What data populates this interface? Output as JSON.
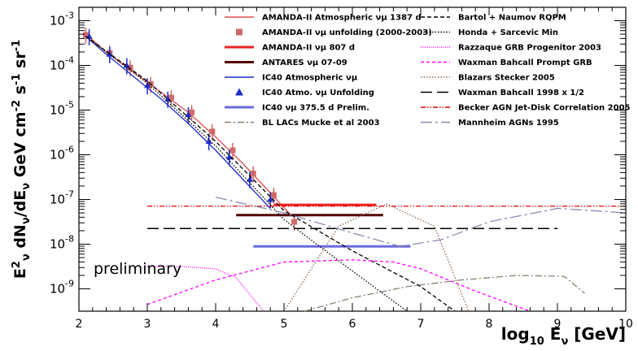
{
  "chart_data": {
    "type": "line",
    "xlabel": "log10 Eν [GeV]",
    "xlabel_parts": {
      "main": "log",
      "sub": "10",
      "mid": " E",
      "nu": "ν",
      "rest": " [GeV]"
    },
    "ylabel_parts": {
      "e": "E",
      "sq": "2",
      "nusub": "ν",
      "dn": " dN",
      "nusub2": "ν",
      "de": "/dE",
      "nusub3": "ν",
      "rest": " GeV cm",
      "exp1": "-2",
      "s": " s",
      "exp2": "-1",
      "sr": " sr",
      "exp3": "-1"
    },
    "xlim": [
      2,
      10
    ],
    "ylim_log10": [
      -9.5,
      -2.7
    ],
    "x_scale": "linear",
    "y_scale": "log",
    "x_ticks": [
      "2",
      "3",
      "4",
      "5",
      "6",
      "7",
      "8",
      "9",
      "10"
    ],
    "y_ticks": [
      {
        "base": "10",
        "exp": "-3"
      },
      {
        "base": "10",
        "exp": "-4"
      },
      {
        "base": "10",
        "exp": "-5"
      },
      {
        "base": "10",
        "exp": "-6"
      },
      {
        "base": "10",
        "exp": "-7"
      },
      {
        "base": "10",
        "exp": "-8"
      },
      {
        "base": "10",
        "exp": "-9"
      }
    ],
    "annotation": "preliminary",
    "legend_placement": "top-right",
    "series": [
      {
        "name": "AMANDA-II Atmospheric νμ 1387 d",
        "color": "#e05050",
        "style": "line",
        "x": [
          2.1,
          2.4,
          2.8,
          3.2,
          3.6,
          4.0,
          4.4,
          4.8,
          5.1
        ],
        "y": [
          -3.3,
          -3.7,
          -4.15,
          -4.6,
          -5.05,
          -5.6,
          -6.2,
          -6.85,
          -7.35
        ]
      },
      {
        "name": "AMANDA-II νμ unfolding (2000-2003)",
        "color": "#d06a6a",
        "style": "square",
        "x": [
          2.1,
          2.45,
          2.75,
          3.05,
          3.35,
          3.65,
          3.95,
          4.25,
          4.55,
          4.85,
          5.15
        ],
        "y": [
          -3.32,
          -3.72,
          -4.05,
          -4.42,
          -4.72,
          -5.05,
          -5.48,
          -5.9,
          -6.42,
          -6.9,
          -7.5
        ]
      },
      {
        "name": "AMANDA-II νμ 807 d",
        "color": "#ee2222",
        "style": "thickline",
        "x": [
          4.85,
          6.35
        ],
        "y": [
          -7.12,
          -7.12
        ]
      },
      {
        "name": "ANTARES νμ 07-09",
        "color": "#550000",
        "style": "thickline",
        "x": [
          4.3,
          6.45
        ],
        "y": [
          -7.35,
          -7.35
        ]
      },
      {
        "name": "IC40 Atmospheric νμ",
        "color": "#1f2cc8",
        "style": "line",
        "x": [
          2.1,
          2.4,
          2.8,
          3.2,
          3.6,
          4.0,
          4.4,
          4.8
        ],
        "y": [
          -3.35,
          -3.75,
          -4.25,
          -4.75,
          -5.3,
          -5.9,
          -6.55,
          -7.2
        ]
      },
      {
        "name": "IC40 Atmo. νμ Unfolding",
        "color": "#1f2cc8",
        "style": "triangle",
        "x": [
          2.15,
          2.45,
          2.7,
          3.0,
          3.3,
          3.6,
          3.9,
          4.2,
          4.5,
          4.8
        ],
        "y": [
          -3.35,
          -3.75,
          -4.0,
          -4.45,
          -4.75,
          -5.1,
          -5.7,
          -6.05,
          -6.55,
          -7.0
        ]
      },
      {
        "name": "IC40 νμ 375.5 d Prelim.",
        "color": "#6a6ae0",
        "style": "thickline",
        "x": [
          4.55,
          6.85
        ],
        "y": [
          -8.05,
          -8.05
        ]
      },
      {
        "name": "BL LACs Mucke et al 2003",
        "color": "#8b7e6e",
        "style": "dashdot",
        "x": [
          5.3,
          6.0,
          6.8,
          7.6,
          8.4,
          9.1,
          9.4
        ],
        "y": [
          -9.5,
          -9.2,
          -8.95,
          -8.8,
          -8.7,
          -8.72,
          -9.1
        ]
      },
      {
        "name": "Bartol + Naumov RQPM",
        "color": "#000000",
        "style": "dashed",
        "x": [
          2.1,
          3.0,
          4.0,
          5.0,
          6.0,
          7.0,
          7.5
        ],
        "y": [
          -3.35,
          -4.35,
          -5.7,
          -7.25,
          -8.15,
          -8.95,
          -9.5
        ]
      },
      {
        "name": "Honda + Sarcevic Min",
        "color": "#000000",
        "style": "dotted",
        "x": [
          2.1,
          3.0,
          4.0,
          5.0,
          6.0,
          6.8
        ],
        "y": [
          -3.35,
          -4.4,
          -5.8,
          -7.45,
          -8.6,
          -9.5
        ]
      },
      {
        "name": "Razzaque GRB Progenitor 2003",
        "color": "#ff00ff",
        "style": "dotted-dense",
        "x": [
          3.0,
          3.5,
          4.0,
          4.3,
          4.7
        ],
        "y": [
          -8.5,
          -8.5,
          -8.55,
          -8.75,
          -9.5
        ]
      },
      {
        "name": "Waxman Bahcall Prompt GRB",
        "color": "#ff00ff",
        "style": "dashed-fine",
        "x": [
          3.0,
          4.0,
          5.0,
          6.0,
          6.6,
          7.0,
          7.8,
          8.6
        ],
        "y": [
          -9.35,
          -8.8,
          -8.4,
          -8.35,
          -8.4,
          -8.55,
          -9.05,
          -9.5
        ]
      },
      {
        "name": "Blazars Stecker 2005",
        "color": "#8b6a50",
        "style": "dotted",
        "x": [
          5.0,
          5.8,
          6.5,
          7.2,
          7.7
        ],
        "y": [
          -9.5,
          -7.6,
          -7.1,
          -7.6,
          -9.5
        ]
      },
      {
        "name": "Waxman Bahcall 1998 x 1/2",
        "color": "#000000",
        "style": "longdash",
        "x": [
          3.0,
          9.0
        ],
        "y": [
          -7.65,
          -7.65
        ]
      },
      {
        "name": "Becker AGN Jet-Disk Correlation 2005",
        "color": "#dd0000",
        "style": "dashdotdot",
        "x": [
          3.0,
          5.0,
          7.0,
          9.0,
          10.0
        ],
        "y": [
          -7.15,
          -7.15,
          -7.15,
          -7.15,
          -7.15
        ]
      },
      {
        "name": "Mannheim AGNs 1995",
        "color": "#8a8ab0",
        "style": "longdashdot",
        "x": [
          4.0,
          5.0,
          6.0,
          6.7,
          7.3,
          8.0,
          9.0,
          10.0
        ],
        "y": [
          -6.95,
          -7.3,
          -7.75,
          -8.05,
          -7.9,
          -7.5,
          -7.2,
          -7.3
        ]
      }
    ]
  }
}
